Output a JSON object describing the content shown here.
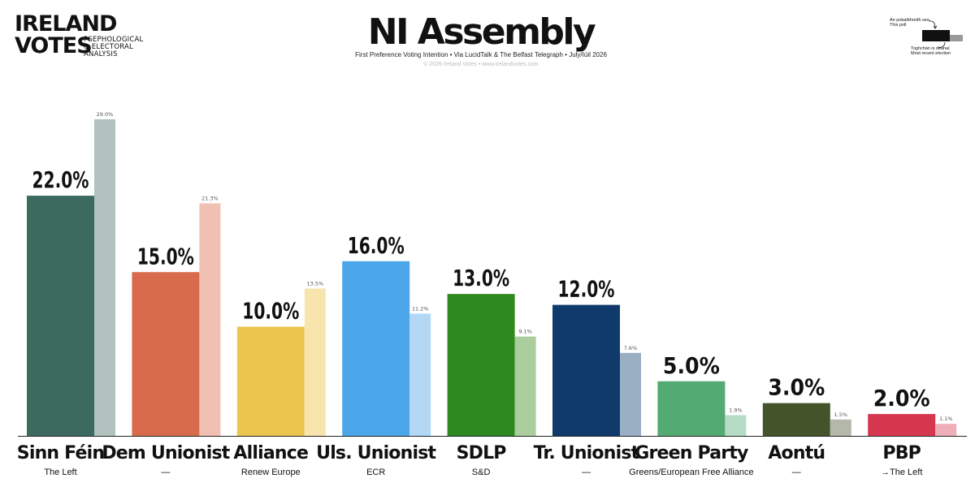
{
  "logo": {
    "line1": "IRELAND",
    "line2": "VOTES",
    "tag1": "PSEPHOLOGICAL",
    "tag2": "& ELECTORAL",
    "tag3": "ANALYSIS"
  },
  "header": {
    "title": "NI Assembly",
    "subtitle": "First Preference Voting Intention • Via LucidTalk & The Belfast Telegraph • July/Iúil 2026",
    "copyright": "© 2026 Ireland Votes • www.irelandvotes.com"
  },
  "legend": {
    "this_poll": "An pobalbhreith seo\nThis poll",
    "recent_election": "Toghchán is déanaí\nMost recent election"
  },
  "chart_data": {
    "type": "bar",
    "title": "NI Assembly",
    "categories": [
      "Sinn Féin",
      "Dem Unionist",
      "Alliance",
      "Uls. Unionist",
      "SDLP",
      "Tr. Unionist",
      "Green Party",
      "Aontú",
      "PBP"
    ],
    "groups": [
      "The Left",
      "—",
      "Renew Europe",
      "ECR",
      "S&D",
      "—",
      "Greens/European Free Alliance",
      "—",
      "→The Left"
    ],
    "series": [
      {
        "values": [
          22.0,
          15.0,
          10.0,
          16.0,
          13.0,
          12.0,
          5.0,
          3.0,
          2.0
        ]
      },
      {
        "values": [
          29.0,
          21.3,
          13.5,
          11.2,
          9.1,
          7.6,
          1.9,
          1.5,
          1.1
        ]
      }
    ],
    "value_labels": [
      "22.0%",
      "15.0%",
      "10.0%",
      "16.0%",
      "13.0%",
      "12.0%",
      "5.0%",
      "3.0%",
      "2.0%"
    ],
    "previous_labels": [
      "29.0%",
      "21.3%",
      "13.5%",
      "11.2%",
      "9.1%",
      "7.6%",
      "1.9%",
      "1.5%",
      "1.1%"
    ],
    "colors": [
      "#3d6a5f",
      "#d86b4c",
      "#ecc54f",
      "#4ba6ea",
      "#2e8a1f",
      "#0f3a6b",
      "#53aa72",
      "#43542b",
      "#d6374f"
    ],
    "previous_colors": [
      "#b1c2bf",
      "#f0c0b2",
      "#f7e5ad",
      "#b2d8f6",
      "#acce9f",
      "#9aafc4",
      "#b6dcc5",
      "#b4b8ab",
      "#efafb8"
    ],
    "ylim": [
      0,
      30
    ],
    "grid": false,
    "legend_position": "top-right"
  }
}
